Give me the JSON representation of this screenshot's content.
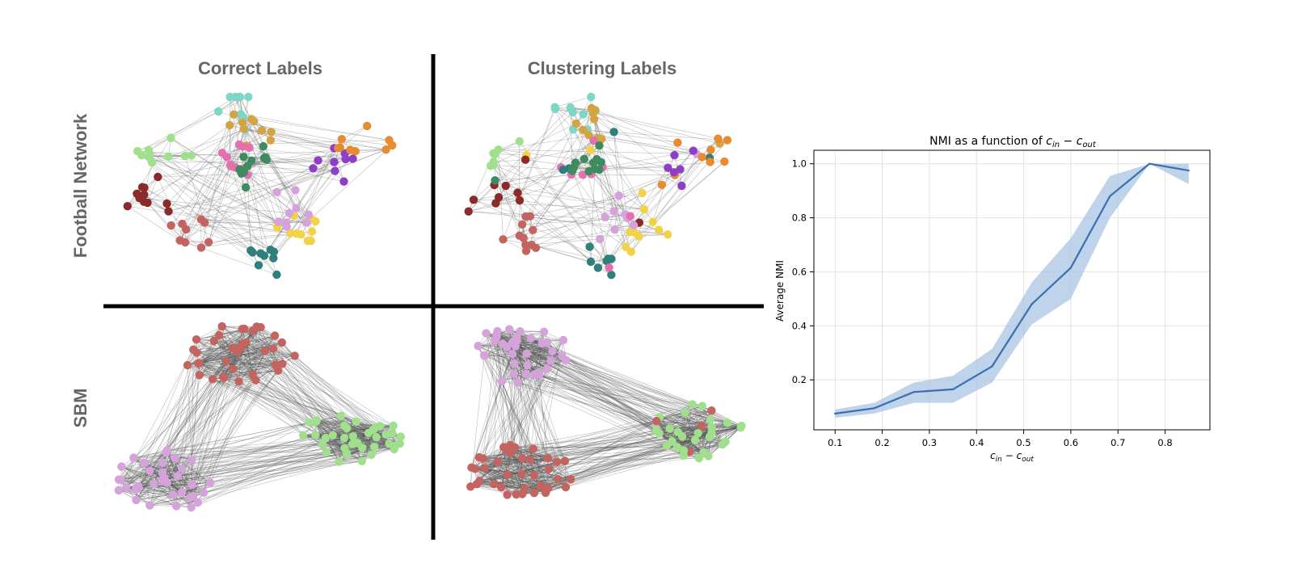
{
  "panels": {
    "col_titles": [
      "Correct Labels",
      "Clustering Labels"
    ],
    "row_titles": [
      "Football Network",
      "SBM"
    ],
    "football_colors": [
      "#7dd6c7",
      "#d4a444",
      "#e570b0",
      "#a0e08c",
      "#8a2a2a",
      "#3f8a5e",
      "#8e3fc6",
      "#e88b31",
      "#f4d247",
      "#c46461",
      "#2f7f7d",
      "#d5a2dc"
    ],
    "sbm_colors": {
      "red": "#c46461",
      "green": "#a0e08c",
      "purple": "#d5a2dc"
    },
    "edge_color": "#555555"
  },
  "chart_data": {
    "type": "line",
    "title": "NMI as a function of c_in − c_out",
    "title_prefix": "NMI as a function of ",
    "title_math": {
      "c1": "c",
      "s1": "in",
      "op": " − ",
      "c2": "c",
      "s2": "out"
    },
    "xlabel": "c_in − c_out",
    "ylabel": "Average NMI",
    "x": [
      0.1,
      0.183,
      0.267,
      0.35,
      0.433,
      0.517,
      0.6,
      0.683,
      0.767,
      0.85
    ],
    "series": [
      {
        "name": "Average NMI",
        "values": [
          0.075,
          0.095,
          0.155,
          0.165,
          0.25,
          0.48,
          0.615,
          0.88,
          1.0,
          0.975
        ],
        "lower": [
          0.06,
          0.075,
          0.115,
          0.115,
          0.19,
          0.405,
          0.5,
          0.8,
          1.0,
          0.925
        ],
        "upper": [
          0.09,
          0.115,
          0.19,
          0.215,
          0.315,
          0.56,
          0.725,
          0.955,
          1.0,
          1.0
        ],
        "color": "#3a6fb0",
        "band_color": "#a9c4e3"
      }
    ],
    "xlim": [
      0.055,
      0.895
    ],
    "ylim": [
      0.015,
      1.05
    ],
    "xticks": [
      0.1,
      0.2,
      0.3,
      0.4,
      0.5,
      0.6,
      0.7,
      0.8
    ],
    "xtick_labels": [
      "0.1",
      "0.2",
      "0.3",
      "0.4",
      "0.5",
      "0.6",
      "0.7",
      "0.8"
    ],
    "yticks": [
      0.2,
      0.4,
      0.6,
      0.8,
      1.0
    ],
    "ytick_labels": [
      "0.2",
      "0.4",
      "0.6",
      "0.8",
      "1.0"
    ],
    "grid": true
  }
}
